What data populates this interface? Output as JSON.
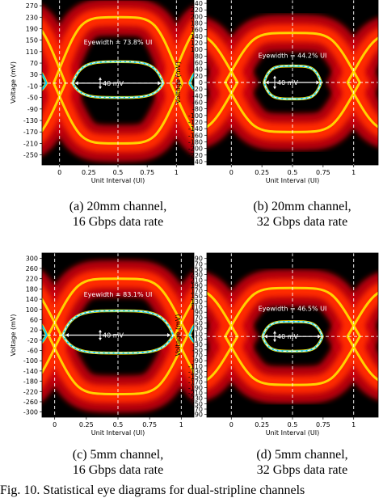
{
  "figure_caption": "Fig. 10. Statistical eye diagrams for dual-stripline channels",
  "chart_data": [
    {
      "type": "heatmap",
      "subtitle_line1": "(a) 20mm channel,",
      "subtitle_line2": "16 Gbps data rate",
      "xlabel": "Unit Interval (UI)",
      "ylabel": "Voltage (mV)",
      "x_ticks": [
        "0",
        "0.25",
        "0.5",
        "0.75",
        "1"
      ],
      "x_tick_values": [
        0,
        0.25,
        0.5,
        0.75,
        1
      ],
      "xlim": [
        -0.15,
        1.15
      ],
      "y_ticks": [
        "270",
        "230",
        "190",
        "150",
        "110",
        "70",
        "30",
        "-10",
        "-50",
        "-90",
        "-130",
        "-170",
        "-210",
        "-250"
      ],
      "y_tick_values": [
        270,
        230,
        190,
        150,
        110,
        70,
        30,
        -10,
        -50,
        -90,
        -130,
        -170,
        -210,
        -250
      ],
      "ylim": [
        -285,
        290
      ],
      "eye_left": 0.0,
      "eye_right": 1.0,
      "eye_center": 0.5,
      "ui_span": 1.0,
      "rail_top": 230,
      "rail_bottom": -210,
      "eye_open_top": 75,
      "eye_open_bottom": -50,
      "eye_opening_ui": 0.738,
      "eyewidth_label": "Eyewidth = 73.8% UI",
      "eyewidth_label_voltage": 135,
      "eyewidth_level": 0,
      "eye_height_label": "40 mV",
      "eye_height_mv": 40
    },
    {
      "type": "heatmap",
      "subtitle_line1": "(b) 20mm channel,",
      "subtitle_line2": "32 Gbps data rate",
      "xlabel": "Unit Interval (UI)",
      "ylabel": "Voltage (mV)",
      "x_ticks": [
        "0",
        "0.25",
        "0.5",
        "0.75",
        "1"
      ],
      "x_tick_values": [
        0,
        0.25,
        0.5,
        0.75,
        1
      ],
      "xlim": [
        -0.2,
        1.2
      ],
      "y_ticks": [
        "240",
        "220",
        "200",
        "180",
        "160",
        "140",
        "120",
        "100",
        "80",
        "60",
        "40",
        "20",
        "0",
        "-20",
        "-40",
        "-60",
        "-80",
        "-100",
        "-120",
        "-140",
        "-160",
        "-180",
        "-200",
        "-220",
        "-240"
      ],
      "y_tick_values": [
        240,
        220,
        200,
        180,
        160,
        140,
        120,
        100,
        80,
        60,
        40,
        20,
        0,
        -20,
        -40,
        -60,
        -80,
        -100,
        -120,
        -140,
        -160,
        -180,
        -200,
        -220,
        -240
      ],
      "ylim": [
        -250,
        250
      ],
      "eye_left": 0.0,
      "eye_right": 1.0,
      "eye_center": 0.5,
      "ui_span": 1.0,
      "rail_top": 150,
      "rail_bottom": -150,
      "eye_open_top": 50,
      "eye_open_bottom": -50,
      "eye_opening_ui": 0.442,
      "eyewidth_label": "Eyewidth = 44.2% UI",
      "eyewidth_label_voltage": 75,
      "eyewidth_level": 0,
      "eye_height_label": "40 mV",
      "eye_height_mv": 40
    },
    {
      "type": "heatmap",
      "subtitle_line1": "(c) 5mm channel,",
      "subtitle_line2": "16 Gbps data rate",
      "xlabel": "Unit Interval (UI)",
      "ylabel": "Voltage (mV)",
      "x_ticks": [
        "0",
        "0.25",
        "0.5",
        "0.75",
        "1"
      ],
      "x_tick_values": [
        0,
        0.25,
        0.5,
        0.75,
        1
      ],
      "xlim": [
        -0.1,
        1.1
      ],
      "y_ticks": [
        "300",
        "260",
        "220",
        "180",
        "140",
        "100",
        "60",
        "20",
        "-20",
        "-60",
        "-100",
        "-140",
        "-180",
        "-220",
        "-260",
        "-300"
      ],
      "y_tick_values": [
        300,
        260,
        220,
        180,
        140,
        100,
        60,
        20,
        -20,
        -60,
        -100,
        -140,
        -180,
        -220,
        -260,
        -300
      ],
      "ylim": [
        -320,
        320
      ],
      "eye_left": 0.0,
      "eye_right": 1.0,
      "eye_center": 0.5,
      "ui_span": 1.0,
      "rail_top": 220,
      "rail_bottom": -230,
      "eye_open_top": 95,
      "eye_open_bottom": -70,
      "eye_opening_ui": 0.831,
      "eyewidth_label": "Eyewidth = 83.1% UI",
      "eyewidth_label_voltage": 150,
      "eyewidth_level": 0,
      "eye_height_label": "40 mV",
      "eye_height_mv": 40
    },
    {
      "type": "heatmap",
      "subtitle_line1": "(d) 5mm channel,",
      "subtitle_line2": "32 Gbps data rate",
      "xlabel": "Unit Interval (UI)",
      "ylabel": "Voltage (mV)",
      "x_ticks": [
        "0",
        "0.25",
        "0.5",
        "0.75",
        "1"
      ],
      "x_tick_values": [
        0,
        0.25,
        0.5,
        0.75,
        1
      ],
      "xlim": [
        -0.2,
        1.2
      ],
      "y_ticks": [
        "290",
        "270",
        "250",
        "230",
        "210",
        "190",
        "170",
        "150",
        "130",
        "110",
        "90",
        "70",
        "50",
        "30",
        "10",
        "-10",
        "-30",
        "-50",
        "-70",
        "-90",
        "-110",
        "-130",
        "-150",
        "-170",
        "-190",
        "-210",
        "-230",
        "-250",
        "-270",
        "-290"
      ],
      "y_tick_values": [
        290,
        270,
        250,
        230,
        210,
        190,
        170,
        150,
        130,
        110,
        90,
        70,
        50,
        30,
        10,
        -10,
        -30,
        -50,
        -70,
        -90,
        -110,
        -130,
        -150,
        -170,
        -190,
        -210,
        -230,
        -250,
        -270,
        -290
      ],
      "ylim": [
        -300,
        310
      ],
      "eye_left": 0.0,
      "eye_right": 1.0,
      "eye_center": 0.5,
      "ui_span": 1.0,
      "rail_top": 180,
      "rail_bottom": -180,
      "eye_open_top": 55,
      "eye_open_bottom": -55,
      "eye_opening_ui": 0.465,
      "eyewidth_label": "Eyewidth = 46.5% UI",
      "eyewidth_label_voltage": 95,
      "eyewidth_level": 0,
      "eye_height_label": "40 mV",
      "eye_height_mv": 40
    }
  ]
}
